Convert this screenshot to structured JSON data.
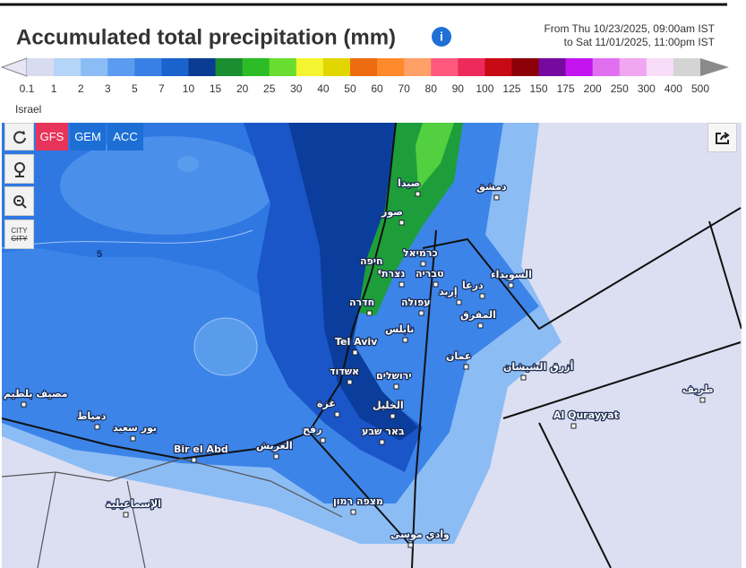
{
  "header": {
    "title": "Accumulated total precipitation (mm)",
    "date_from": "From Thu 10/23/2025, 09:00am IST",
    "date_to": "to Sat 11/01/2025, 11:00pm IST"
  },
  "legend": {
    "labels": [
      0.1,
      1,
      2,
      3,
      5,
      7,
      10,
      15,
      20,
      25,
      30,
      40,
      50,
      60,
      70,
      80,
      90,
      100,
      125,
      150,
      175,
      200,
      250,
      300,
      400,
      500
    ],
    "colors": [
      "#e6e6f4",
      "#d8dcf0",
      "#b4d4f8",
      "#8cbcf6",
      "#5c9cf0",
      "#3880e6",
      "#1a62cc",
      "#0a3c94",
      "#1a8e30",
      "#2cbc28",
      "#6ade30",
      "#f4f430",
      "#e2d600",
      "#ee6c10",
      "#ff8a2c",
      "#ffa068",
      "#ff5a7e",
      "#ee2a5c",
      "#c80a14",
      "#8c0008",
      "#760aa0",
      "#c414f0",
      "#e070f0",
      "#f0a6f0",
      "#f8dcf8",
      "#d4d4d4",
      "#8a8a8a"
    ]
  },
  "region": "Israel",
  "controls": {
    "models": [
      "GFS",
      "GEM",
      "ACC"
    ],
    "city_toggle": [
      "CITY",
      "CITY"
    ]
  },
  "map": {
    "contour_label": 5,
    "cities": [
      "Tel Aviv",
      "חיפה",
      "כרמיאל",
      "טבריה",
      "נצרת",
      "עפולה",
      "חדרה",
      "نابلس",
      "אשדוד",
      "ירושלים",
      "غزة",
      "رفح",
      "الخليل",
      "באר שבע",
      "صور",
      "صيدا",
      "دمشق",
      "إربد",
      "درعا",
      "السويداء",
      "المفرق",
      "عمان",
      "أزرق الشيشان",
      "Al Qurayyat",
      "العريش",
      "Bir el Abd",
      "بور سعيد",
      "دمياط",
      "الإسماعيلية",
      "מצפה רמון",
      "وادي موسى",
      "طريف",
      "مصيف بلطيم"
    ]
  }
}
